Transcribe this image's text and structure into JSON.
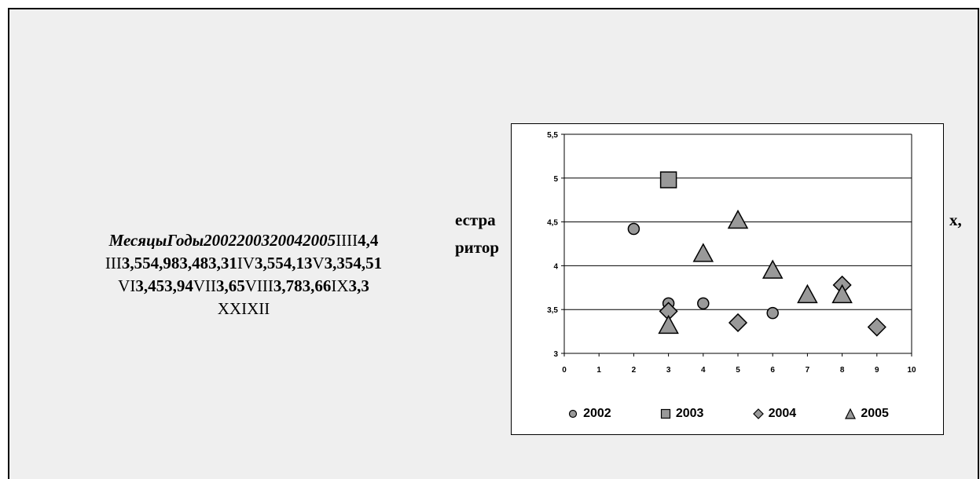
{
  "left_text": {
    "line1_italic": "МесяцыГоды2002200320042005",
    "line1_rest": "IIII",
    "line1_bold": "4,4",
    "line2_a": "III",
    "line2_b": "3,554,983,483,31",
    "line2_c": "IV",
    "line2_d": "3,554,13",
    "line2_e": "V",
    "line2_f": "3,354,51",
    "line3_a": "VI",
    "line3_b": "3,453,94",
    "line3_c": "VII",
    "line3_d": "3,65",
    "line3_e": "VIII",
    "line3_f": "3,783,66",
    "line3_g": "IX",
    "line3_h": "3,3",
    "line4": "XXIXII"
  },
  "background_heading": {
    "frag1": "естра",
    "frag2": "ритор",
    "frag3": "х,"
  },
  "chart_data": {
    "type": "scatter",
    "title": "",
    "xlabel": "",
    "ylabel": "",
    "xlim": [
      0,
      10
    ],
    "ylim": [
      3,
      5.5
    ],
    "x_ticks": [
      "0",
      "1",
      "2",
      "3",
      "4",
      "5",
      "6",
      "7",
      "8",
      "9",
      "10"
    ],
    "y_ticks": [
      "3",
      "3,5",
      "4",
      "4,5",
      "5",
      "5,5"
    ],
    "grid": "horizontal",
    "legend_position": "bottom",
    "series": [
      {
        "name": "2002",
        "marker": "circle",
        "color": "#999999",
        "points": [
          [
            2,
            4.42
          ],
          [
            3,
            3.57
          ],
          [
            4,
            3.57
          ],
          [
            6,
            3.46
          ]
        ]
      },
      {
        "name": "2003",
        "marker": "square",
        "color": "#999999",
        "points": [
          [
            3,
            4.98
          ]
        ]
      },
      {
        "name": "2004",
        "marker": "diamond",
        "color": "#999999",
        "points": [
          [
            3,
            3.48
          ],
          [
            5,
            3.35
          ],
          [
            8,
            3.78
          ],
          [
            9,
            3.3
          ]
        ]
      },
      {
        "name": "2005",
        "marker": "triangle",
        "color": "#999999",
        "points": [
          [
            3,
            3.31
          ],
          [
            4,
            4.13
          ],
          [
            5,
            4.51
          ],
          [
            6,
            3.94
          ],
          [
            7,
            3.66
          ],
          [
            8,
            3.66
          ]
        ]
      }
    ]
  }
}
